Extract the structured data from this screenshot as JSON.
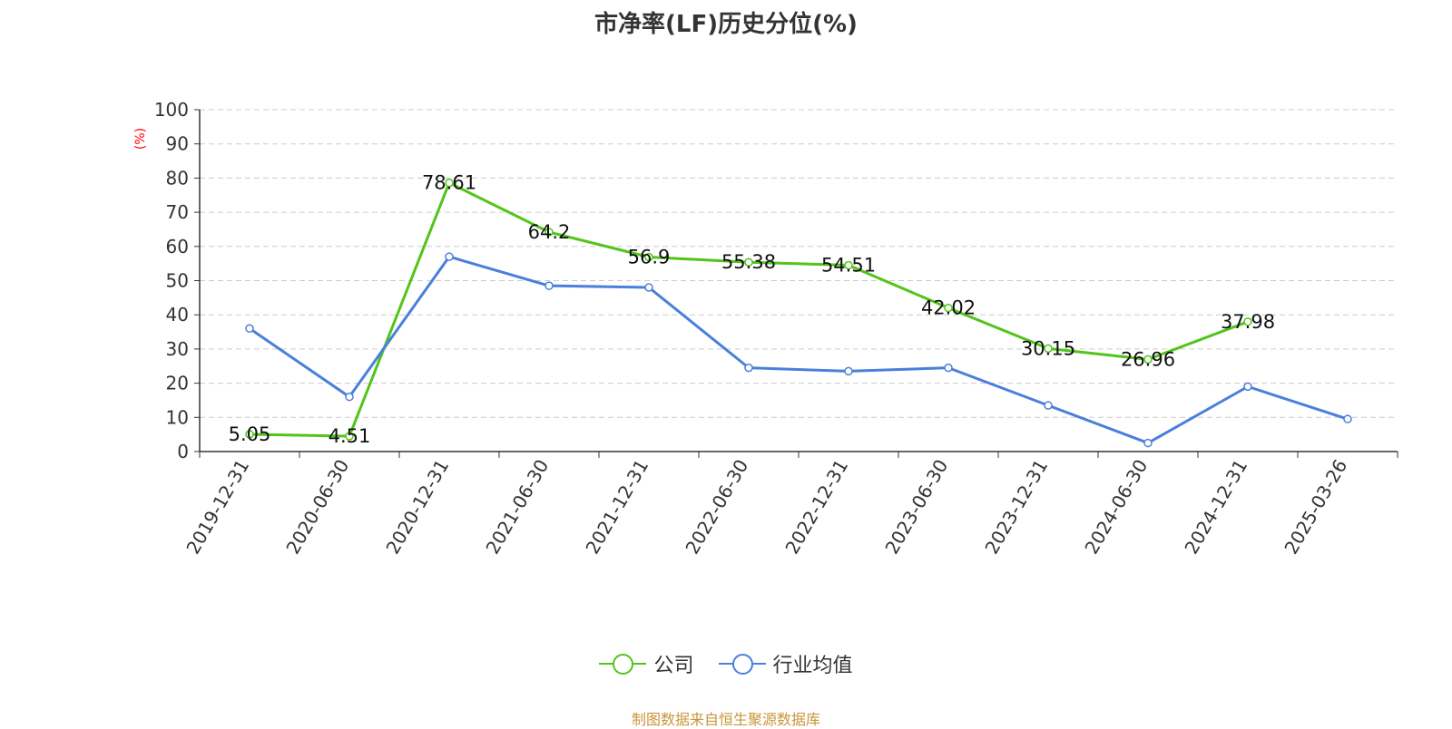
{
  "chart_data": {
    "type": "line",
    "title": "市净率(LF)历史分位(%)",
    "ylabel": "(%)",
    "ylim": [
      0,
      100
    ],
    "yticks": [
      0,
      10,
      20,
      30,
      40,
      50,
      60,
      70,
      80,
      90,
      100
    ],
    "grid": true,
    "legend_position": "bottom-center",
    "categories": [
      "2019-12-31",
      "2020-06-30",
      "2020-12-31",
      "2021-06-30",
      "2021-12-31",
      "2022-06-30",
      "2022-12-31",
      "2023-06-30",
      "2023-12-31",
      "2024-06-30",
      "2024-12-31",
      "2025-03-26"
    ],
    "series": [
      {
        "name": "公司",
        "color": "#52c41a",
        "show_labels": true,
        "values": [
          5.05,
          4.51,
          78.61,
          64.2,
          56.9,
          55.38,
          54.51,
          42.02,
          30.15,
          26.96,
          37.98,
          null
        ]
      },
      {
        "name": "行业均值",
        "color": "#4a7fdc",
        "show_labels": false,
        "values": [
          36,
          16,
          57,
          48.5,
          48,
          24.5,
          23.5,
          24.5,
          13.5,
          2.5,
          19,
          9.5
        ]
      }
    ]
  },
  "footer": {
    "source": "制图数据来自恒生聚源数据库"
  },
  "colors": {
    "axis": "#333333",
    "grid": "#cccccc",
    "ylabel": "#ff0000",
    "source": "#c8963c"
  }
}
